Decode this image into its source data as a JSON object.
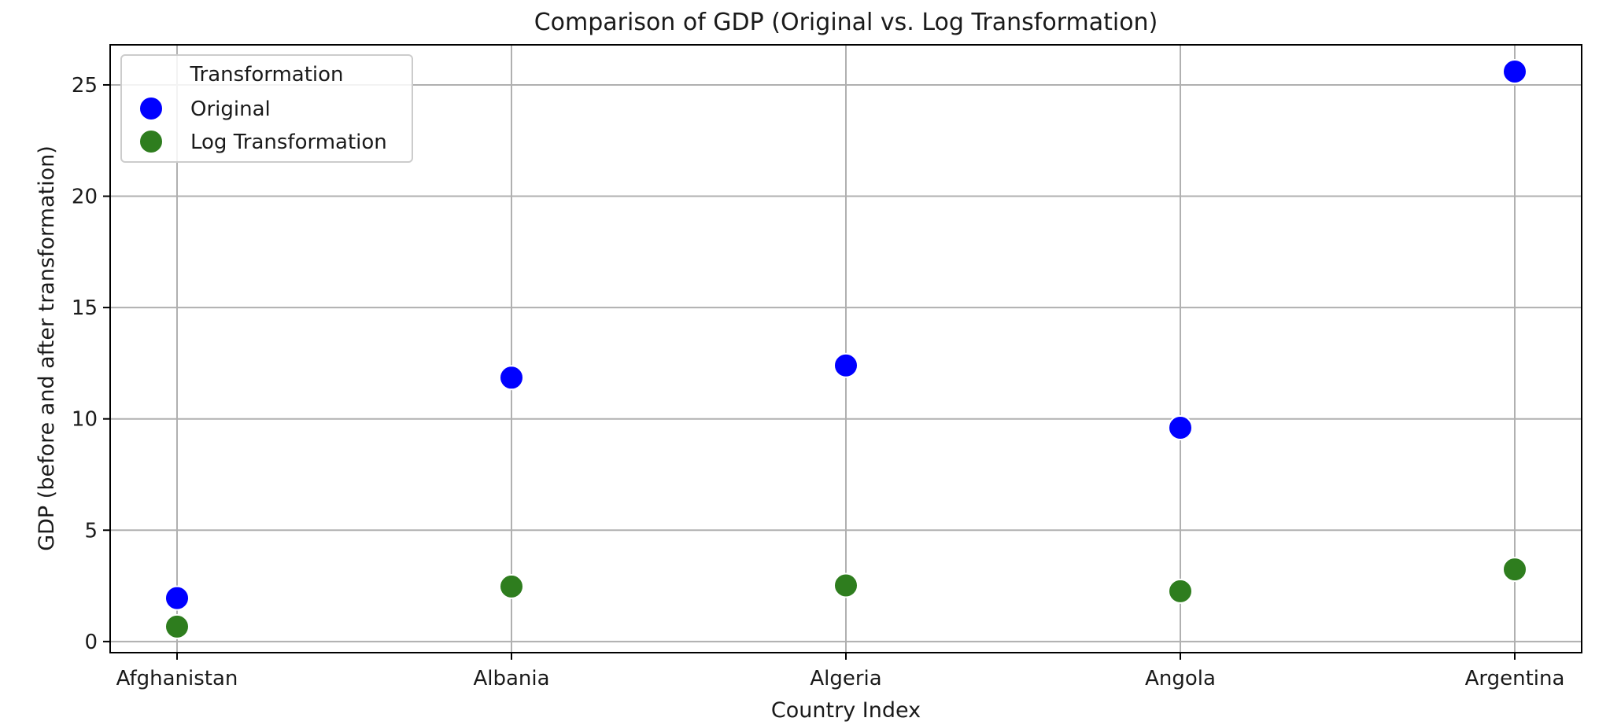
{
  "chart_data": {
    "type": "scatter",
    "title": "Comparison of GDP (Original vs. Log Transformation)",
    "xlabel": "Country Index",
    "ylabel": "GDP (before and after transformation)",
    "categories": [
      "Afghanistan",
      "Albania",
      "Algeria",
      "Angola",
      "Argentina"
    ],
    "series": [
      {
        "name": "Original",
        "color": "#0000ff",
        "values": [
          1.95,
          11.85,
          12.4,
          9.6,
          25.6
        ]
      },
      {
        "name": "Log Transformation",
        "color": "#2e7d1e",
        "values": [
          0.67,
          2.47,
          2.52,
          2.26,
          3.24
        ]
      }
    ],
    "ylim": [
      -0.5,
      26.8
    ],
    "yticks": [
      0,
      5,
      10,
      15,
      20,
      25
    ],
    "grid": true,
    "legend": {
      "title": "Transformation",
      "placement": "upper-left"
    }
  }
}
